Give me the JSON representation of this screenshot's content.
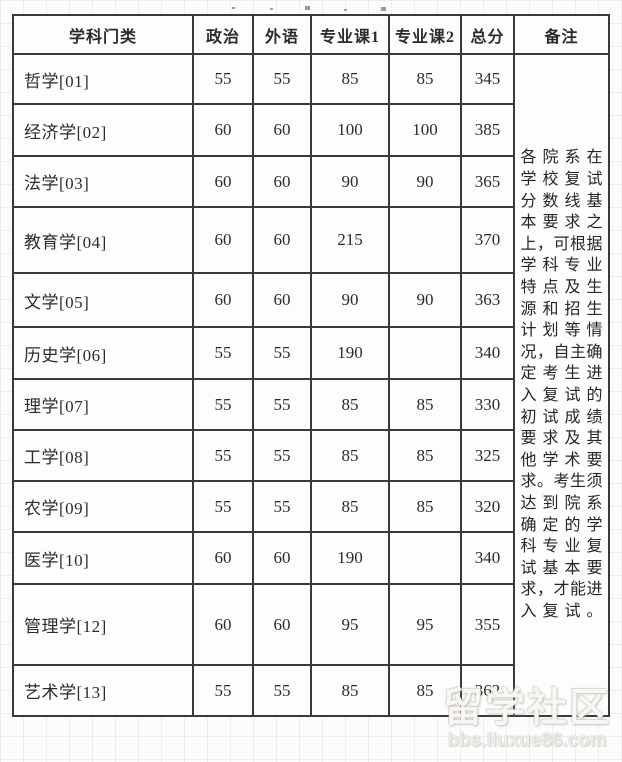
{
  "header": {
    "columns": [
      "学科门类",
      "政治",
      "外语",
      "专业课1",
      "专业课2",
      "总分",
      "备注"
    ]
  },
  "table": {
    "rows": [
      {
        "category": "哲学[01]",
        "politics": "55",
        "foreign": "55",
        "course1": "85",
        "course2": "85",
        "total": "345"
      },
      {
        "category": "经济学[02]",
        "politics": "60",
        "foreign": "60",
        "course1": "100",
        "course2": "100",
        "total": "385"
      },
      {
        "category": "法学[03]",
        "politics": "60",
        "foreign": "60",
        "course1": "90",
        "course2": "90",
        "total": "365"
      },
      {
        "category": "教育学[04]",
        "politics": "60",
        "foreign": "60",
        "course1": "215",
        "course2": "",
        "total": "370"
      },
      {
        "category": "文学[05]",
        "politics": "60",
        "foreign": "60",
        "course1": "90",
        "course2": "90",
        "total": "363"
      },
      {
        "category": "历史学[06]",
        "politics": "55",
        "foreign": "55",
        "course1": "190",
        "course2": "",
        "total": "340"
      },
      {
        "category": "理学[07]",
        "politics": "55",
        "foreign": "55",
        "course1": "85",
        "course2": "85",
        "total": "330"
      },
      {
        "category": "工学[08]",
        "politics": "55",
        "foreign": "55",
        "course1": "85",
        "course2": "85",
        "total": "325"
      },
      {
        "category": "农学[09]",
        "politics": "55",
        "foreign": "55",
        "course1": "85",
        "course2": "85",
        "total": "320"
      },
      {
        "category": "医学[10]",
        "politics": "60",
        "foreign": "60",
        "course1": "190",
        "course2": "",
        "total": "340"
      },
      {
        "category": "管理学[12]",
        "politics": "60",
        "foreign": "60",
        "course1": "95",
        "course2": "95",
        "total": "355"
      },
      {
        "category": "艺术学[13]",
        "politics": "55",
        "foreign": "55",
        "course1": "85",
        "course2": "85",
        "total": "362"
      }
    ]
  },
  "remark": {
    "lines": [
      "各院系在",
      "学校复试",
      "分数线基",
      "本要求之",
      "上，可根据",
      "学科专业",
      "特点及生",
      "源和招生",
      "计划等情",
      "况，自主确",
      "定考生进",
      "入复试的",
      "初试成绩",
      "要求及其",
      "他学术要",
      "求。考生须",
      "达到院系",
      "确定的学",
      "科专业复",
      "试基本要",
      "求，才能进",
      "入复试。"
    ]
  },
  "watermark": {
    "title": "留学社区",
    "url": "bbs.liuxue86.com"
  },
  "colors": {
    "table_border": "#3a3a3a",
    "text": "#2b2b2b",
    "background_grid": "#dde3ea",
    "watermark": "#f3f1ee"
  }
}
